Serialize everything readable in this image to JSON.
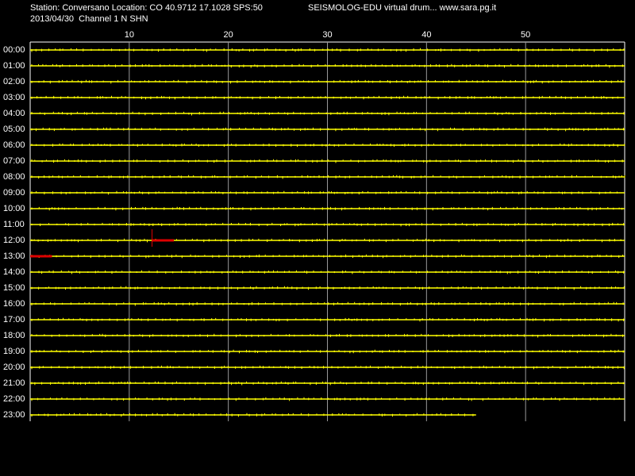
{
  "chart_data": {
    "type": "helicorder",
    "title": "Station: Conversano Location: CO 40.9712 17.1028 SPS:50",
    "subtitle": "2013/04/30  Channel 1 N SHN",
    "source": "SEISMOLOG-EDU virtual drum... www.sara.pg.it",
    "categories": [
      "00:00",
      "01:00",
      "02:00",
      "03:00",
      "04:00",
      "05:00",
      "06:00",
      "07:00",
      "08:00",
      "09:00",
      "10:00",
      "11:00",
      "12:00",
      "13:00",
      "14:00",
      "15:00",
      "16:00",
      "17:00",
      "18:00",
      "19:00",
      "20:00",
      "21:00",
      "22:00",
      "23:00"
    ],
    "trace_end": [
      60,
      60,
      60,
      60,
      60,
      60,
      60,
      60,
      60,
      60,
      60,
      60,
      60,
      60,
      60,
      60,
      60,
      60,
      60,
      60,
      60,
      60,
      60,
      45
    ],
    "color": "#ffff00",
    "events": [
      {
        "row": "12:00",
        "start": 12.3,
        "end": 14.5,
        "color": "#dd0000"
      },
      {
        "row": "13:00",
        "start": 0,
        "end": 2.2,
        "color": "#dd0000"
      }
    ],
    "xlim": [
      0,
      60
    ],
    "xticks": [
      10,
      20,
      30,
      40,
      50
    ],
    "grid": true
  }
}
